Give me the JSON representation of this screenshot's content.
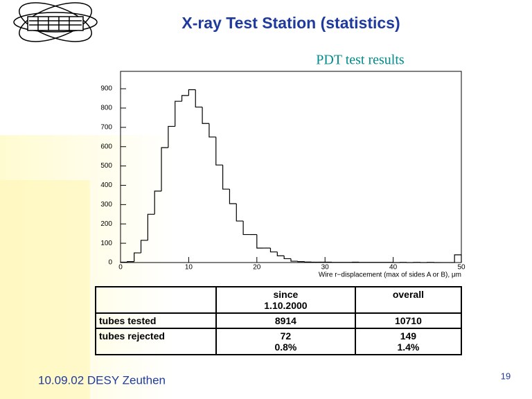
{
  "slide_title": "X-ray Test Station (statistics)",
  "footer": "10.09.02 DESY Zeuthen",
  "page_number": "19",
  "chart_data": {
    "type": "histogram",
    "title": "PDT test results",
    "x_label": "Wire r−displacement (max of sides A or B), μm",
    "bins": [
      0,
      1,
      2,
      3,
      4,
      5,
      6,
      7,
      8,
      9,
      10,
      11,
      12,
      13,
      14,
      15,
      16,
      17,
      18,
      19,
      20,
      21,
      22,
      23,
      24,
      25,
      26,
      27,
      28,
      29,
      30,
      31,
      32,
      33,
      34,
      35,
      36,
      37,
      38,
      39,
      40,
      41,
      42,
      43,
      44,
      45,
      46,
      47,
      48,
      49,
      50
    ],
    "values": [
      2,
      5,
      50,
      115,
      250,
      370,
      595,
      705,
      835,
      865,
      895,
      805,
      720,
      650,
      505,
      380,
      305,
      215,
      145,
      145,
      75,
      75,
      55,
      35,
      20,
      7,
      5,
      3,
      2,
      2,
      2,
      1,
      1,
      1,
      2,
      1,
      1,
      1,
      1,
      1,
      0,
      1,
      0,
      1,
      0,
      1,
      0,
      0,
      0,
      40
    ],
    "color": "#000000",
    "xlim": [
      0,
      50
    ],
    "xticks": [
      0,
      10,
      20,
      30,
      40,
      50
    ],
    "ylim": [
      0,
      990
    ],
    "yticks": [
      0,
      100,
      200,
      300,
      400,
      500,
      600,
      700,
      800,
      900
    ]
  },
  "table": {
    "columns": [
      [
        "since",
        "1.10.2000"
      ],
      [
        "overall"
      ]
    ],
    "rows": [
      {
        "label": "tubes tested",
        "cells": [
          [
            "8914"
          ],
          [
            "10710"
          ]
        ]
      },
      {
        "label": "tubes rejected",
        "cells": [
          [
            "72",
            "0.8%"
          ],
          [
            "149",
            "1.4%"
          ]
        ]
      }
    ]
  }
}
